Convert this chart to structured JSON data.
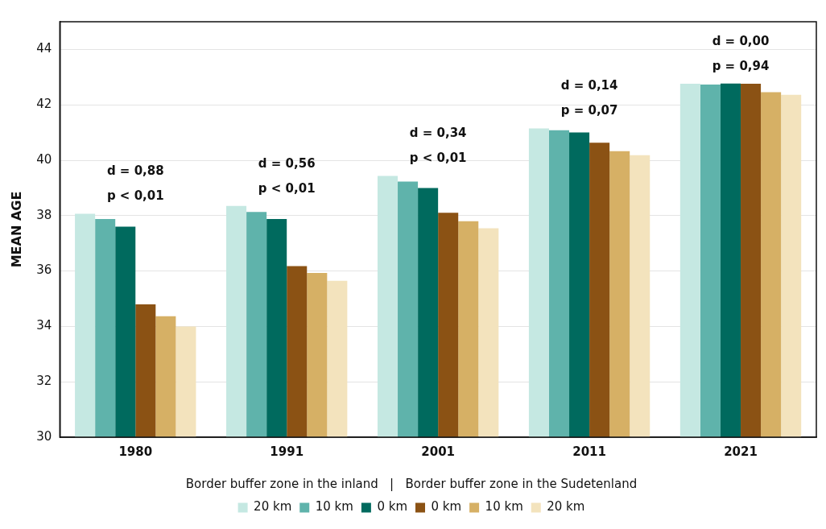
{
  "chart_data": {
    "type": "bar",
    "ylabel": "MEAN AGE",
    "legend_title": "Border buffer zone in the inland   |   Border buffer zone in the Sudetenland",
    "categories": [
      "1980",
      "1991",
      "2001",
      "2011",
      "2021"
    ],
    "series": [
      {
        "name": "20 km",
        "color": "#c5e8e2",
        "values": [
          38.07,
          38.35,
          39.43,
          41.15,
          42.76
        ]
      },
      {
        "name": "10 km",
        "color": "#5fb3ab",
        "values": [
          37.88,
          38.13,
          39.23,
          41.08,
          42.73
        ]
      },
      {
        "name": "0 km",
        "color": "#006a5e",
        "values": [
          37.6,
          37.88,
          39.0,
          41.0,
          42.77
        ]
      },
      {
        "name": "0 km",
        "color": "#8b5214",
        "values": [
          34.8,
          36.18,
          38.1,
          40.63,
          42.76
        ]
      },
      {
        "name": "10 km",
        "color": "#d6b065",
        "values": [
          34.37,
          35.93,
          37.8,
          40.33,
          42.46
        ]
      },
      {
        "name": "20 km",
        "color": "#f3e3bd",
        "values": [
          34.0,
          35.65,
          37.54,
          40.18,
          42.36
        ]
      }
    ],
    "ylim": [
      30,
      45
    ],
    "yticks": [
      30,
      32,
      34,
      36,
      38,
      40,
      42,
      44
    ],
    "grid": "y",
    "legend": "bottom",
    "annotations": [
      "d = 0,88",
      "p < 0,01",
      "d = 0,56",
      "p < 0,01",
      "d = 0,34",
      "p < 0,01",
      "d = 0,14",
      "p = 0,07",
      "d = 0,00",
      "p = 0,94"
    ]
  }
}
